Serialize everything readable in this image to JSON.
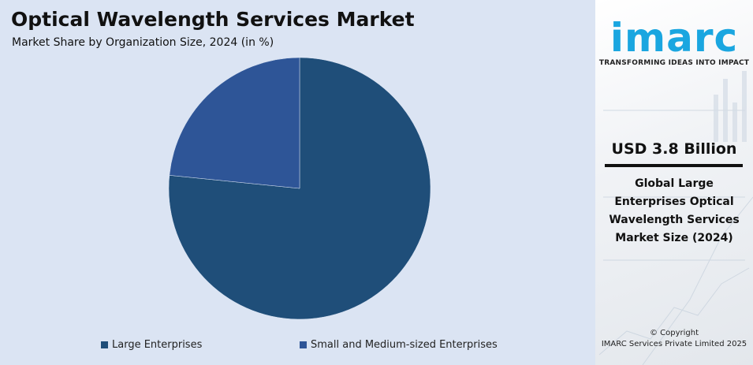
{
  "chart_data": {
    "type": "pie",
    "title": "Optical Wavelength Services Market",
    "subtitle": "Market Share by Organization Size, 2024 (in %)",
    "categories": [
      "Large Enterprises",
      "Small and Medium-sized Enterprises"
    ],
    "values": [
      76.6,
      23.4
    ],
    "colors": [
      "#1f4e79",
      "#2e5597"
    ],
    "legend_position": "bottom"
  },
  "side_panel": {
    "logo_text": "imarc",
    "tagline": "TRANSFORMING IDEAS INTO IMPACT",
    "stat_value": "USD 3.8 Billion",
    "stat_caption": "Global Large Enterprises Optical Wavelength Services Market Size (2024)",
    "copyright_line1": "© Copyright",
    "copyright_line2": "IMARC Services Private Limited 2025",
    "brand_color": "#1aa6e0"
  }
}
